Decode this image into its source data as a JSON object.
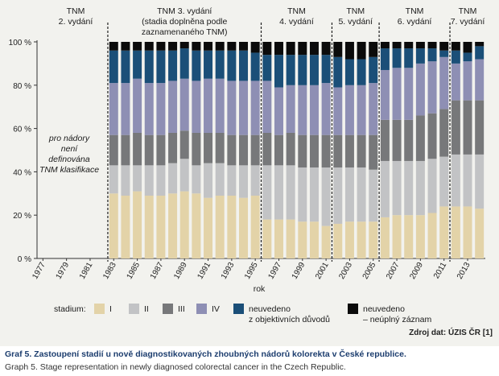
{
  "chart_data": {
    "type": "bar",
    "stacked": true,
    "xlabel": "rok",
    "ylim": [
      0,
      100
    ],
    "y_ticks": [
      0,
      20,
      40,
      60,
      80,
      100
    ],
    "y_tick_labels": [
      "0 %",
      "20 %",
      "40 %",
      "60 %",
      "80 %",
      "100 %"
    ],
    "x_tick_labels": [
      "1977",
      "1979",
      "1981",
      "1983",
      "1985",
      "1987",
      "1989",
      "1991",
      "1993",
      "1995",
      "1997",
      "1999",
      "2001",
      "2003",
      "2005",
      "2007",
      "2009",
      "2011",
      "2013"
    ],
    "categories": [
      "1977",
      "1978",
      "1979",
      "1980",
      "1981",
      "1982",
      "1983",
      "1984",
      "1985",
      "1986",
      "1987",
      "1988",
      "1989",
      "1990",
      "1991",
      "1992",
      "1993",
      "1994",
      "1995",
      "1996",
      "1997",
      "1998",
      "1999",
      "2000",
      "2001",
      "2002",
      "2003",
      "2004",
      "2005",
      "2006",
      "2007",
      "2008",
      "2009",
      "2010",
      "2011",
      "2012",
      "2013",
      "2014"
    ],
    "series": [
      {
        "name": "I",
        "color": "#e3d3a8",
        "values": [
          null,
          null,
          null,
          null,
          null,
          null,
          30,
          29,
          31,
          29,
          29,
          30,
          31,
          30,
          28,
          29,
          29,
          28,
          29,
          18,
          18,
          18,
          17,
          17,
          15,
          16,
          17,
          17,
          17,
          19,
          20,
          20,
          20,
          21,
          24,
          24,
          24,
          23
        ]
      },
      {
        "name": "II",
        "color": "#c2c3c5",
        "values": [
          null,
          null,
          null,
          null,
          null,
          null,
          13,
          14,
          12,
          14,
          14,
          14,
          15,
          13,
          16,
          15,
          14,
          15,
          14,
          25,
          25,
          25,
          25,
          25,
          27,
          26,
          25,
          25,
          24,
          26,
          25,
          25,
          25,
          25,
          23,
          24,
          24,
          25
        ]
      },
      {
        "name": "III",
        "color": "#77787a",
        "values": [
          null,
          null,
          null,
          null,
          null,
          null,
          14,
          14,
          15,
          14,
          14,
          14,
          13,
          15,
          14,
          14,
          14,
          14,
          14,
          15,
          14,
          15,
          15,
          15,
          15,
          15,
          15,
          15,
          16,
          19,
          19,
          19,
          21,
          21,
          22,
          25,
          25,
          25
        ]
      },
      {
        "name": "IV",
        "color": "#8e8fb4",
        "values": [
          null,
          null,
          null,
          null,
          null,
          null,
          24,
          24,
          25,
          24,
          24,
          24,
          24,
          24,
          25,
          25,
          25,
          25,
          25,
          24,
          22,
          22,
          23,
          23,
          24,
          22,
          23,
          23,
          24,
          23,
          24,
          24,
          24,
          24,
          24,
          17,
          18,
          19
        ]
      },
      {
        "name": "neuvedeno z objektivních důvodů",
        "color": "#1b4f78",
        "values": [
          null,
          null,
          null,
          null,
          null,
          null,
          15,
          15,
          13,
          15,
          15,
          14,
          14,
          14,
          13,
          13,
          14,
          14,
          13,
          12,
          15,
          14,
          14,
          14,
          13,
          14,
          12,
          12,
          12,
          10,
          9,
          9,
          7,
          6,
          3,
          6,
          4,
          6
        ]
      },
      {
        "name": "neuvedeno – neúplný záznam",
        "color": "#0b0b0b",
        "values": [
          null,
          null,
          null,
          null,
          null,
          null,
          4,
          4,
          4,
          4,
          4,
          4,
          3,
          4,
          4,
          4,
          4,
          4,
          5,
          6,
          6,
          6,
          6,
          6,
          6,
          7,
          8,
          8,
          7,
          3,
          3,
          3,
          3,
          3,
          4,
          4,
          5,
          2
        ]
      }
    ],
    "edition_labels": [
      [
        "TNM",
        "2. vydání"
      ],
      [
        "TNM  3. vydání",
        "(stadia doplněna podle",
        "zaznamenaného TNM)"
      ],
      [
        "TNM",
        "4. vydání"
      ],
      [
        "TNM",
        "5. vydání"
      ],
      [
        "TNM",
        "6. vydání"
      ],
      [
        "TNM",
        "7. vydání"
      ]
    ],
    "edition_boundaries": [
      1982,
      1995,
      2001,
      2005,
      2011
    ],
    "note_lines": [
      "pro nádory",
      "není",
      "definována",
      "TNM klasifikace"
    ],
    "legend_title": "stadium:",
    "legend_items": [
      {
        "lines": [
          "I"
        ],
        "color": "#e3d3a8"
      },
      {
        "lines": [
          "II"
        ],
        "color": "#c2c3c5"
      },
      {
        "lines": [
          "III"
        ],
        "color": "#77787a"
      },
      {
        "lines": [
          "IV"
        ],
        "color": "#8e8fb4"
      },
      {
        "lines": [
          "neuvedeno",
          "z objektivních důvodů"
        ],
        "color": "#1b4f78"
      },
      {
        "lines": [
          "neuvedeno",
          "– neúplný záznam"
        ],
        "color": "#0b0b0b"
      }
    ]
  },
  "source": "Zdroj dat: ÚZIS ČR [1]",
  "caption_cs": "Graf 5. Zastoupení stadií u nově diagnostikovaných zhoubných nádorů kolorekta v České republice.",
  "caption_en": "Graph 5. Stage representation in newly diagnosed colorectal cancer in the Czech Republic."
}
